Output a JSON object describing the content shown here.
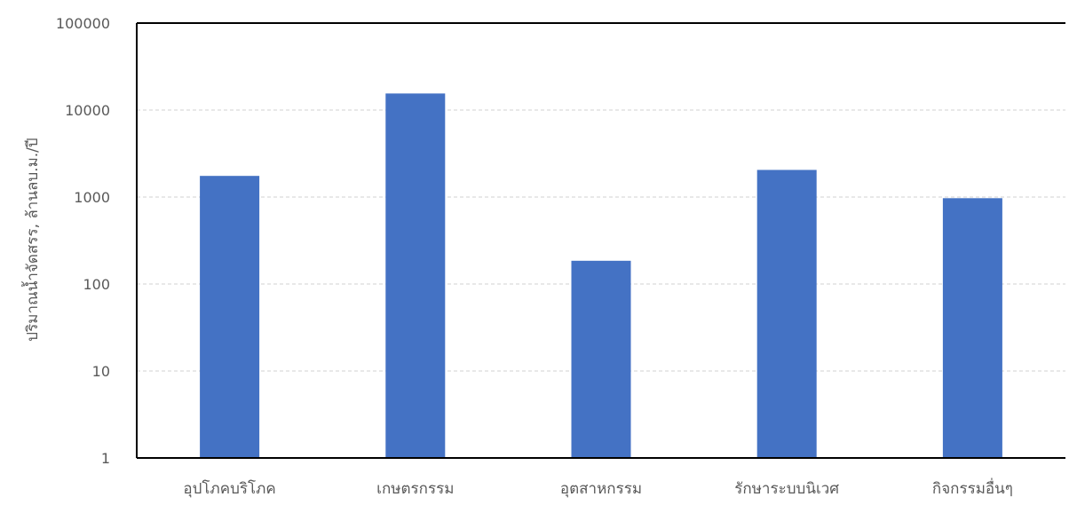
{
  "chart_data": {
    "type": "bar",
    "title": "",
    "xlabel": "",
    "ylabel": "ปริมาณน้ำจัดสรร, ล้านลบ.ม./ปี",
    "y_scale": "log",
    "ylim": [
      1,
      100000
    ],
    "y_ticks": [
      {
        "value": 1,
        "label": "1"
      },
      {
        "value": 10,
        "label": "10"
      },
      {
        "value": 100,
        "label": "100"
      },
      {
        "value": 1000,
        "label": "1000"
      },
      {
        "value": 10000,
        "label": "10000"
      },
      {
        "value": 100000,
        "label": "100000"
      }
    ],
    "categories": [
      "อุปโภคบริโภค",
      "เกษตรกรรม",
      "อุตสาหกรรม",
      "รักษาระบบนิเวศ",
      "กิจกรรมอื่นๆ"
    ],
    "values": [
      1750,
      15500,
      185,
      2050,
      970
    ],
    "grid": true,
    "legend": "none",
    "colors": {
      "bar": "#4472C4",
      "grid": "#D0D0D0",
      "axis": "#000000",
      "text": "#595959"
    }
  }
}
